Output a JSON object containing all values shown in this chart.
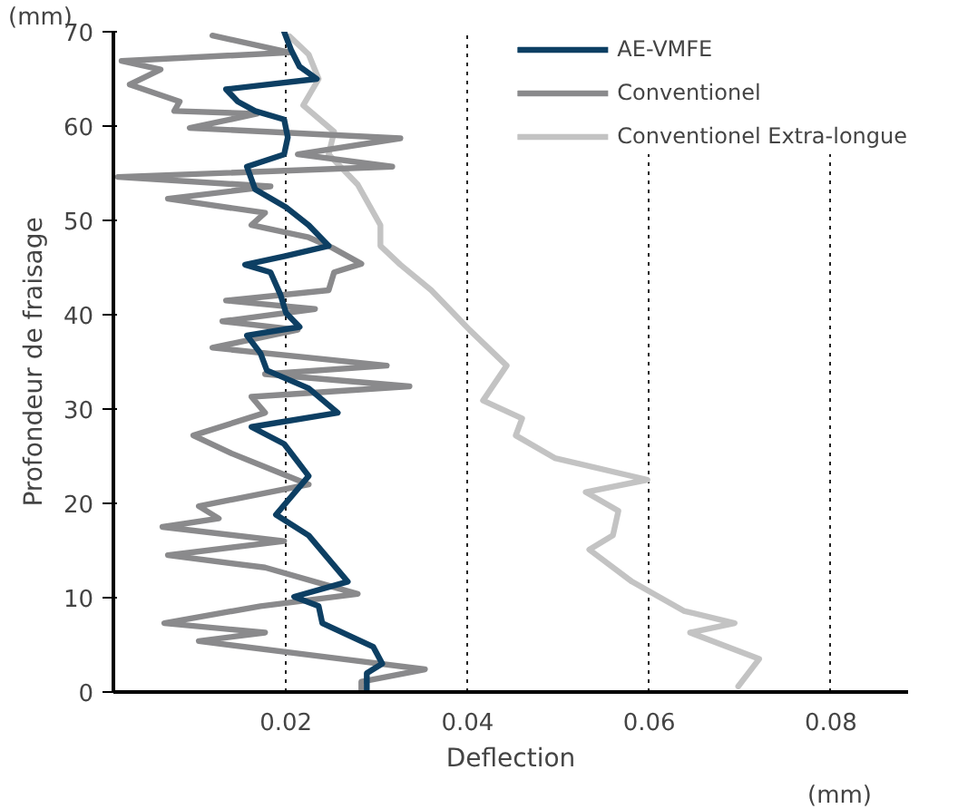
{
  "chart_data": {
    "type": "line",
    "xlabel": "Deflection",
    "ylabel": "Profondeur de fraisage",
    "annotations": [
      "(mm)",
      "(mm)"
    ],
    "xlim": [
      0.001,
      0.0885
    ],
    "xticks": [
      0.02,
      0.04,
      0.06,
      0.08
    ],
    "ylim": [
      0,
      70
    ],
    "yticks": [
      0,
      10,
      20,
      30,
      40,
      50,
      60,
      70
    ],
    "grid": "x",
    "legend": "top right",
    "line_style": "solid",
    "series": [
      {
        "name": "AE-VMFE",
        "color": "#0d3f63",
        "x": [
          0.0198,
          0.0206,
          0.0215,
          0.0234,
          0.0134,
          0.0147,
          0.0166,
          0.0198,
          0.0202,
          0.0198,
          0.0157,
          0.0166,
          0.02,
          0.0225,
          0.0247,
          0.0198,
          0.0155,
          0.0183,
          0.0194,
          0.02,
          0.0215,
          0.0157,
          0.0172,
          0.0179,
          0.0225,
          0.0257,
          0.0162,
          0.0198,
          0.0225,
          0.0189,
          0.0225,
          0.0268,
          0.0209,
          0.0236,
          0.024,
          0.0296,
          0.0306,
          0.0289,
          0.0289
        ],
        "values": [
          70,
          68,
          66.3,
          65,
          63.9,
          62.6,
          61.6,
          60.7,
          58.8,
          57,
          55.7,
          53.3,
          51.4,
          49.5,
          47.3,
          46.2,
          45.3,
          44.5,
          42.1,
          40.2,
          38.7,
          37.8,
          35.9,
          34.1,
          32.2,
          29.6,
          28.1,
          26.3,
          22.9,
          18.8,
          16.6,
          11.7,
          10.1,
          9.1,
          7.3,
          4.8,
          3,
          2,
          0
        ]
      },
      {
        "name": "Conventionel",
        "color": "#8a8a8c",
        "x": [
          0.0119,
          0.0204,
          0.0019,
          0.0062,
          0.0028,
          0.0083,
          0.0077,
          0.0168,
          0.0094,
          0.0326,
          0.0213,
          0.0317,
          0.0015,
          0.0183,
          0.007,
          0.0177,
          0.0162,
          0.0225,
          0.0251,
          0.0283,
          0.0253,
          0.0247,
          0.0134,
          0.0232,
          0.013,
          0.0213,
          0.0119,
          0.0311,
          0.0177,
          0.0336,
          0.0162,
          0.0177,
          0.0098,
          0.014,
          0.0225,
          0.0104,
          0.0126,
          0.0064,
          0.0198,
          0.007,
          0.0177,
          0.0279,
          0.0172,
          0.0066,
          0.0177,
          0.0104,
          0.0262,
          0.0353,
          0.0283,
          0.0283
        ],
        "values": [
          69.6,
          67.8,
          66.9,
          66,
          64.4,
          62.6,
          61.6,
          61.3,
          59.8,
          58.7,
          57,
          55.7,
          54.6,
          53.6,
          52.3,
          50.8,
          49.5,
          48.2,
          47.1,
          45.4,
          44.5,
          42.6,
          41.5,
          40.6,
          39.3,
          38.4,
          36.5,
          34.6,
          33.7,
          32.4,
          31.3,
          29.6,
          27.2,
          25.3,
          22,
          19.7,
          18.4,
          17.5,
          16,
          14.5,
          13.2,
          10.4,
          9.1,
          7.3,
          6.3,
          5.4,
          3.5,
          2.4,
          1.1,
          0
        ]
      },
      {
        "name": "Conventionel Extra-longue",
        "color": "#c3c3c3",
        "x": [
          0.0204,
          0.0225,
          0.0236,
          0.0219,
          0.0253,
          0.0247,
          0.0279,
          0.0304,
          0.0304,
          0.0326,
          0.036,
          0.0402,
          0.0443,
          0.0417,
          0.046,
          0.0453,
          0.0496,
          0.0598,
          0.053,
          0.0566,
          0.056,
          0.0534,
          0.0581,
          0.0638,
          0.0694,
          0.0645,
          0.0721,
          0.0698
        ],
        "values": [
          69.5,
          67.6,
          65,
          62.2,
          59.4,
          57,
          53.8,
          49.5,
          47.3,
          45.3,
          42.6,
          38.4,
          34.6,
          30.9,
          29,
          27.2,
          24.8,
          22.5,
          21.2,
          19.2,
          16.6,
          15.1,
          11.7,
          8.6,
          7.3,
          6.3,
          3.5,
          0.6
        ]
      }
    ]
  }
}
